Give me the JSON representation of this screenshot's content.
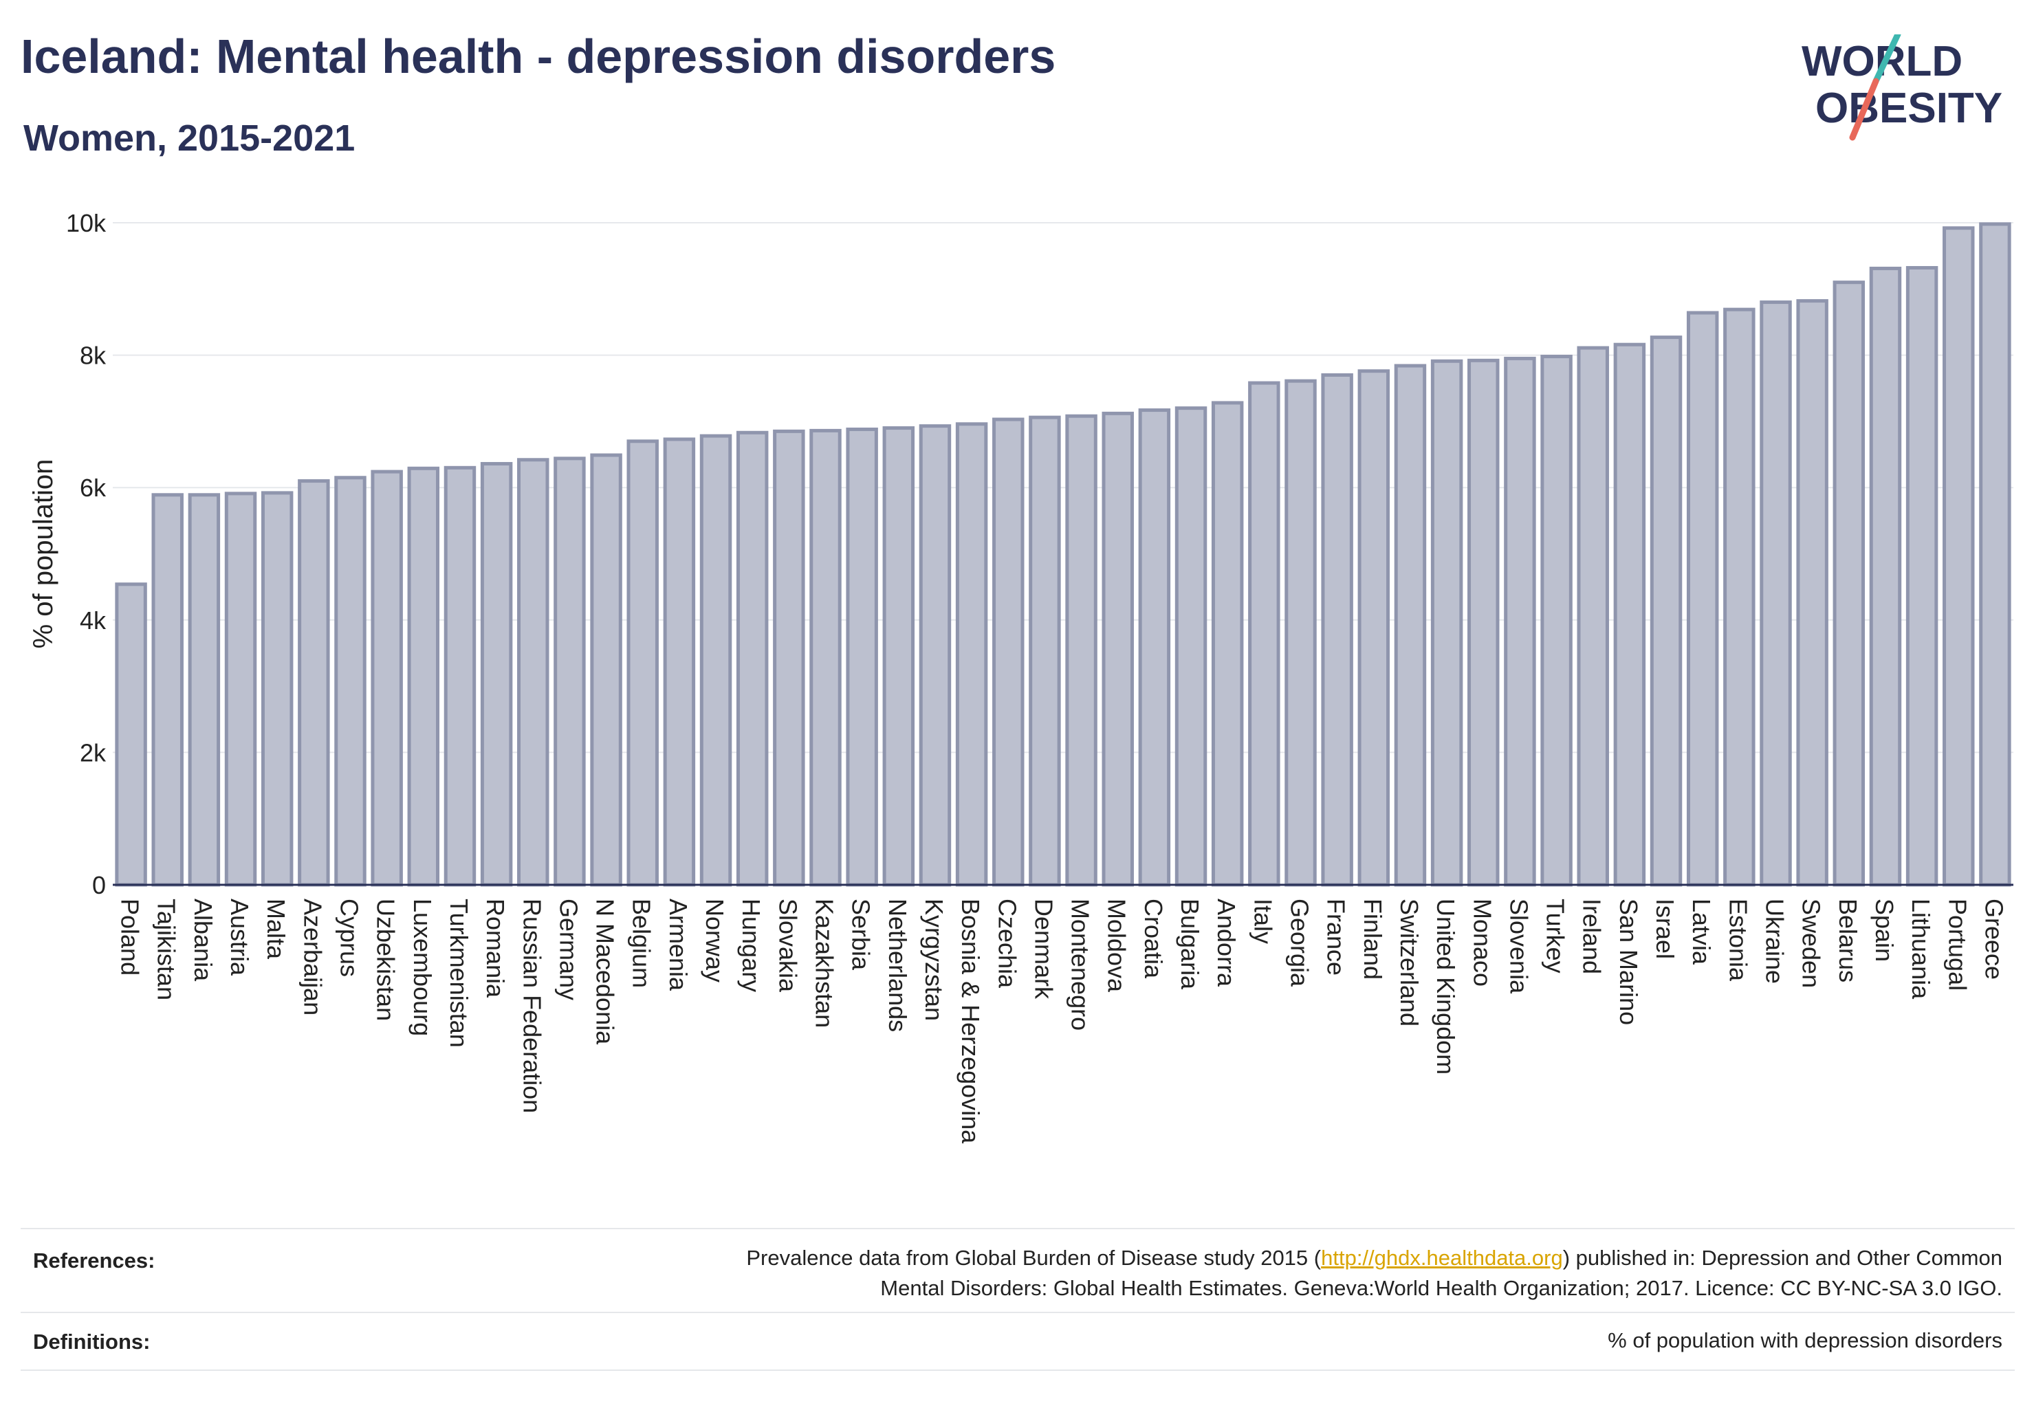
{
  "header": {
    "title": "Iceland: Mental health - depression disorders",
    "subtitle": "Women, 2015-2021"
  },
  "logo": {
    "line1": "WORLD",
    "line2": "OBESITY",
    "accent_teal": "#3fb7b0",
    "accent_red": "#e8685a",
    "text_color": "#2a3158"
  },
  "colors": {
    "bar_fill": "#bcc0cf",
    "bar_stroke": "#8f95ad",
    "axis": "#2a3158",
    "grid": "#e6e8ec"
  },
  "chart_data": {
    "type": "bar",
    "ylabel": "% of population",
    "xlabel": "",
    "ylim": [
      0,
      10000
    ],
    "yticks": [
      "0",
      "2k",
      "4k",
      "6k",
      "8k",
      "10k"
    ],
    "ytick_values": [
      0,
      2000,
      4000,
      6000,
      8000,
      10000
    ],
    "grid": true,
    "categories": [
      "Poland",
      "Tajikistan",
      "Albania",
      "Austria",
      "Malta",
      "Azerbaijan",
      "Cyprus",
      "Uzbekistan",
      "Luxembourg",
      "Turkmenistan",
      "Romania",
      "Russian Federation",
      "Germany",
      "N Macedonia",
      "Belgium",
      "Armenia",
      "Norway",
      "Hungary",
      "Slovakia",
      "Kazakhstan",
      "Serbia",
      "Netherlands",
      "Kyrgyzstan",
      "Bosnia & Herzegovina",
      "Czechia",
      "Denmark",
      "Montenegro",
      "Moldova",
      "Croatia",
      "Bulgaria",
      "Andorra",
      "Italy",
      "Georgia",
      "France",
      "Finland",
      "Switzerland",
      "United Kingdom",
      "Monaco",
      "Slovenia",
      "Turkey",
      "Ireland",
      "San Marino",
      "Israel",
      "Latvia",
      "Estonia",
      "Ukraine",
      "Sweden",
      "Belarus",
      "Spain",
      "Lithuania",
      "Portugal",
      "Greece"
    ],
    "values": [
      4540,
      5890,
      5890,
      5910,
      5920,
      6100,
      6150,
      6240,
      6290,
      6300,
      6360,
      6420,
      6440,
      6490,
      6700,
      6730,
      6780,
      6830,
      6850,
      6860,
      6880,
      6900,
      6930,
      6960,
      7030,
      7060,
      7080,
      7120,
      7170,
      7200,
      7280,
      7580,
      7610,
      7700,
      7760,
      7840,
      7910,
      7920,
      7950,
      7980,
      8110,
      8160,
      8270,
      8640,
      8690,
      8800,
      8820,
      9100,
      9310,
      9320,
      9920,
      9980
    ]
  },
  "footer": {
    "references_label": "References:",
    "references_text_before": "Prevalence data from Global Burden of Disease study 2015 (",
    "references_link": "http://ghdx.healthdata.org",
    "references_text_after": ") published in: Depression and Other Common",
    "references_line2": "Mental Disorders: Global Health Estimates. Geneva:World Health Organization; 2017. Licence: CC BY-NC-SA 3.0 IGO.",
    "definitions_label": "Definitions:",
    "definitions_text": "% of population with depression disorders"
  }
}
